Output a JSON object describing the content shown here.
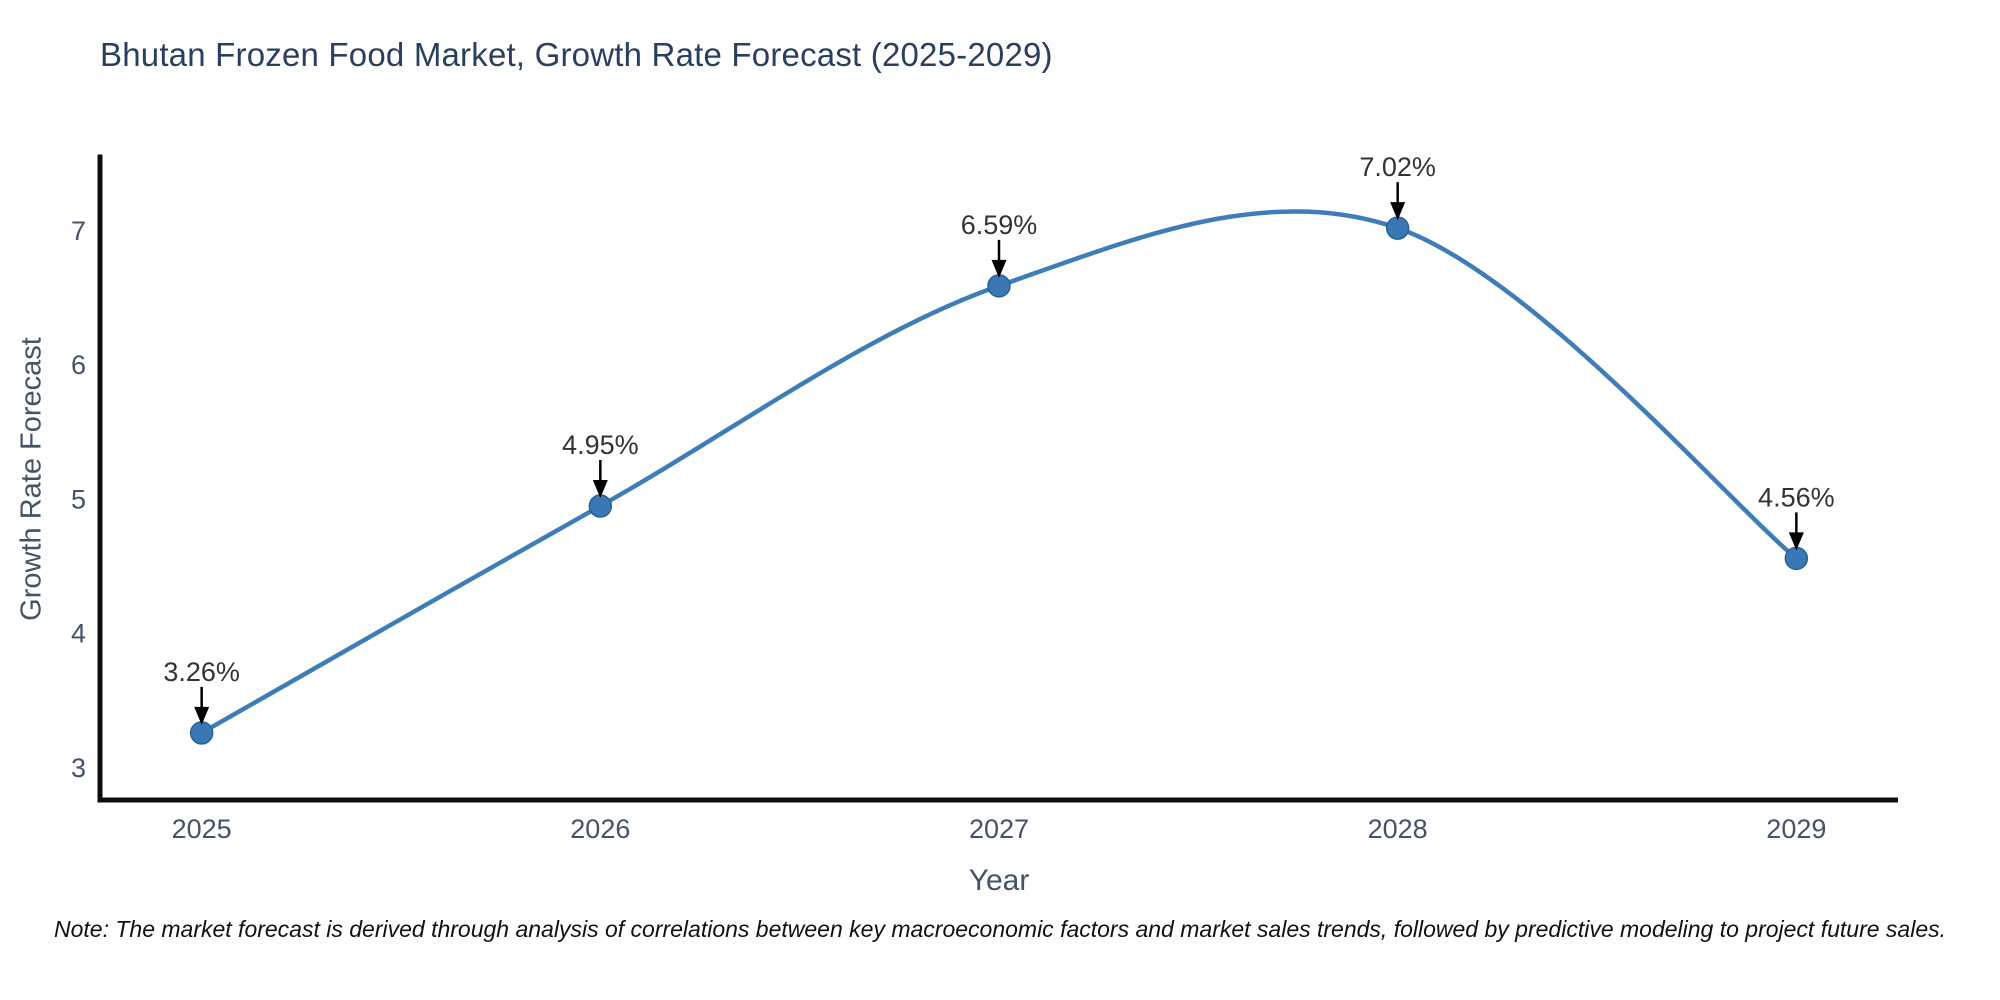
{
  "page": {
    "background": "#ffffff"
  },
  "chart_data": {
    "type": "line",
    "title": "Bhutan Frozen Food Market, Growth Rate Forecast (2025-2029)",
    "xlabel": "Year",
    "ylabel": "Growth Rate Forecast",
    "x": [
      2025,
      2026,
      2027,
      2028,
      2029
    ],
    "y": [
      3.26,
      4.95,
      6.59,
      7.02,
      4.56
    ],
    "point_labels": [
      "3.26%",
      "4.95%",
      "6.59%",
      "7.02%",
      "4.56%"
    ],
    "x_tick_labels": [
      "2025",
      "2026",
      "2027",
      "2028",
      "2029"
    ],
    "y_tick_values": [
      3,
      4,
      5,
      6,
      7
    ],
    "y_tick_labels": [
      "3",
      "4",
      "5",
      "6",
      "7"
    ],
    "xlim": [
      2024.745,
      2029.255
    ],
    "ylim": [
      2.76,
      7.55
    ],
    "grid": false,
    "legend": null,
    "line_shape": "spline",
    "colors": {
      "line": "#3e7db8",
      "marker_fill": "#3a78b5",
      "marker_edge": "#2a6096",
      "spine": "#0f0f0f",
      "tick_label": "#42536a",
      "title": "#2a3f5f",
      "annotation_text": "#333333",
      "arrow": "#000000"
    }
  },
  "footnote": {
    "text": "Note: The market forecast is derived through analysis of correlations between key macroeconomic factors and market sales trends, followed by predictive modeling to project future sales."
  }
}
